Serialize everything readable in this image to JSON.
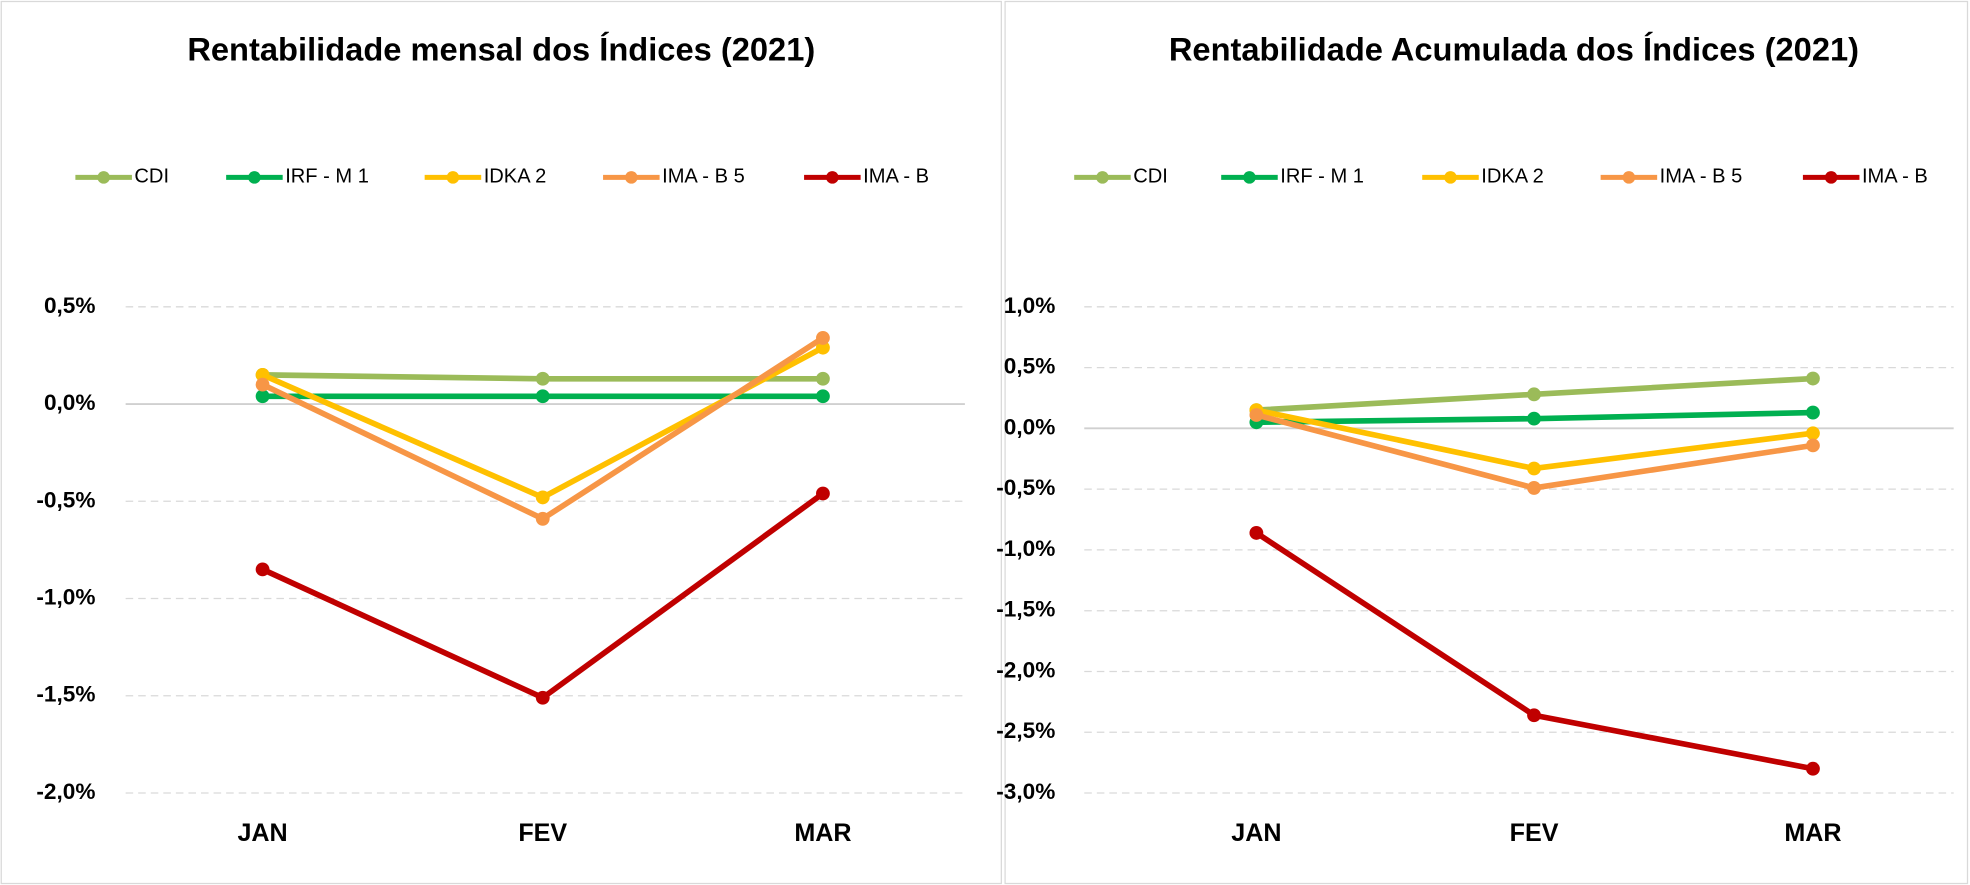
{
  "chart_data": [
    {
      "type": "line",
      "title": "Rentabilidade mensal dos Índices (2021)",
      "legend": "top",
      "grid": true,
      "categories": [
        "JAN",
        "FEV",
        "MAR"
      ],
      "ylim": [
        -2.0,
        0.5
      ],
      "yticks": [
        {
          "value": -2.0,
          "label": "-2,0%"
        },
        {
          "value": -1.5,
          "label": "-1,5%"
        },
        {
          "value": -1.0,
          "label": "-1,0%"
        },
        {
          "value": -0.5,
          "label": "-0,5%"
        },
        {
          "value": 0,
          "label": "0,0%"
        },
        {
          "value": 0.5,
          "label": "0,5%"
        }
      ],
      "series": [
        {
          "name": "CDI",
          "color": "#9bbb59",
          "values": [
            0.15,
            0.13,
            0.13
          ]
        },
        {
          "name": "IRF - M 1",
          "color": "#00b050",
          "values": [
            0.04,
            0.04,
            0.04
          ]
        },
        {
          "name": "IDKA 2",
          "color": "#ffc000",
          "values": [
            0.15,
            -0.48,
            0.29
          ]
        },
        {
          "name": "IMA - B 5",
          "color": "#f79646",
          "values": [
            0.1,
            -0.59,
            0.34
          ]
        },
        {
          "name": "IMA - B",
          "color": "#c00000",
          "values": [
            -0.85,
            -1.51,
            -0.46
          ]
        }
      ]
    },
    {
      "type": "line",
      "title": "Rentabilidade Acumulada dos Índices (2021)",
      "legend": "top",
      "grid": true,
      "categories": [
        "JAN",
        "FEV",
        "MAR"
      ],
      "ylim": [
        -3.0,
        1.0
      ],
      "yticks": [
        {
          "value": -3.0,
          "label": "-3,0%"
        },
        {
          "value": -2.5,
          "label": "-2,5%"
        },
        {
          "value": -2.0,
          "label": "-2,0%"
        },
        {
          "value": -1.5,
          "label": "-1,5%"
        },
        {
          "value": -1.0,
          "label": "-1,0%"
        },
        {
          "value": -0.5,
          "label": "-0,5%"
        },
        {
          "value": 0,
          "label": "0,0%"
        },
        {
          "value": 0.5,
          "label": "0,5%"
        },
        {
          "value": 1.0,
          "label": "1,0%"
        }
      ],
      "series": [
        {
          "name": "CDI",
          "color": "#9bbb59",
          "values": [
            0.15,
            0.28,
            0.41
          ]
        },
        {
          "name": "IRF - M 1",
          "color": "#00b050",
          "values": [
            0.05,
            0.08,
            0.13
          ]
        },
        {
          "name": "IDKA 2",
          "color": "#ffc000",
          "values": [
            0.15,
            -0.33,
            -0.04
          ]
        },
        {
          "name": "IMA - B 5",
          "color": "#f79646",
          "values": [
            0.11,
            -0.49,
            -0.14
          ]
        },
        {
          "name": "IMA - B",
          "color": "#c00000",
          "values": [
            -0.86,
            -2.36,
            -2.8
          ]
        }
      ]
    }
  ]
}
